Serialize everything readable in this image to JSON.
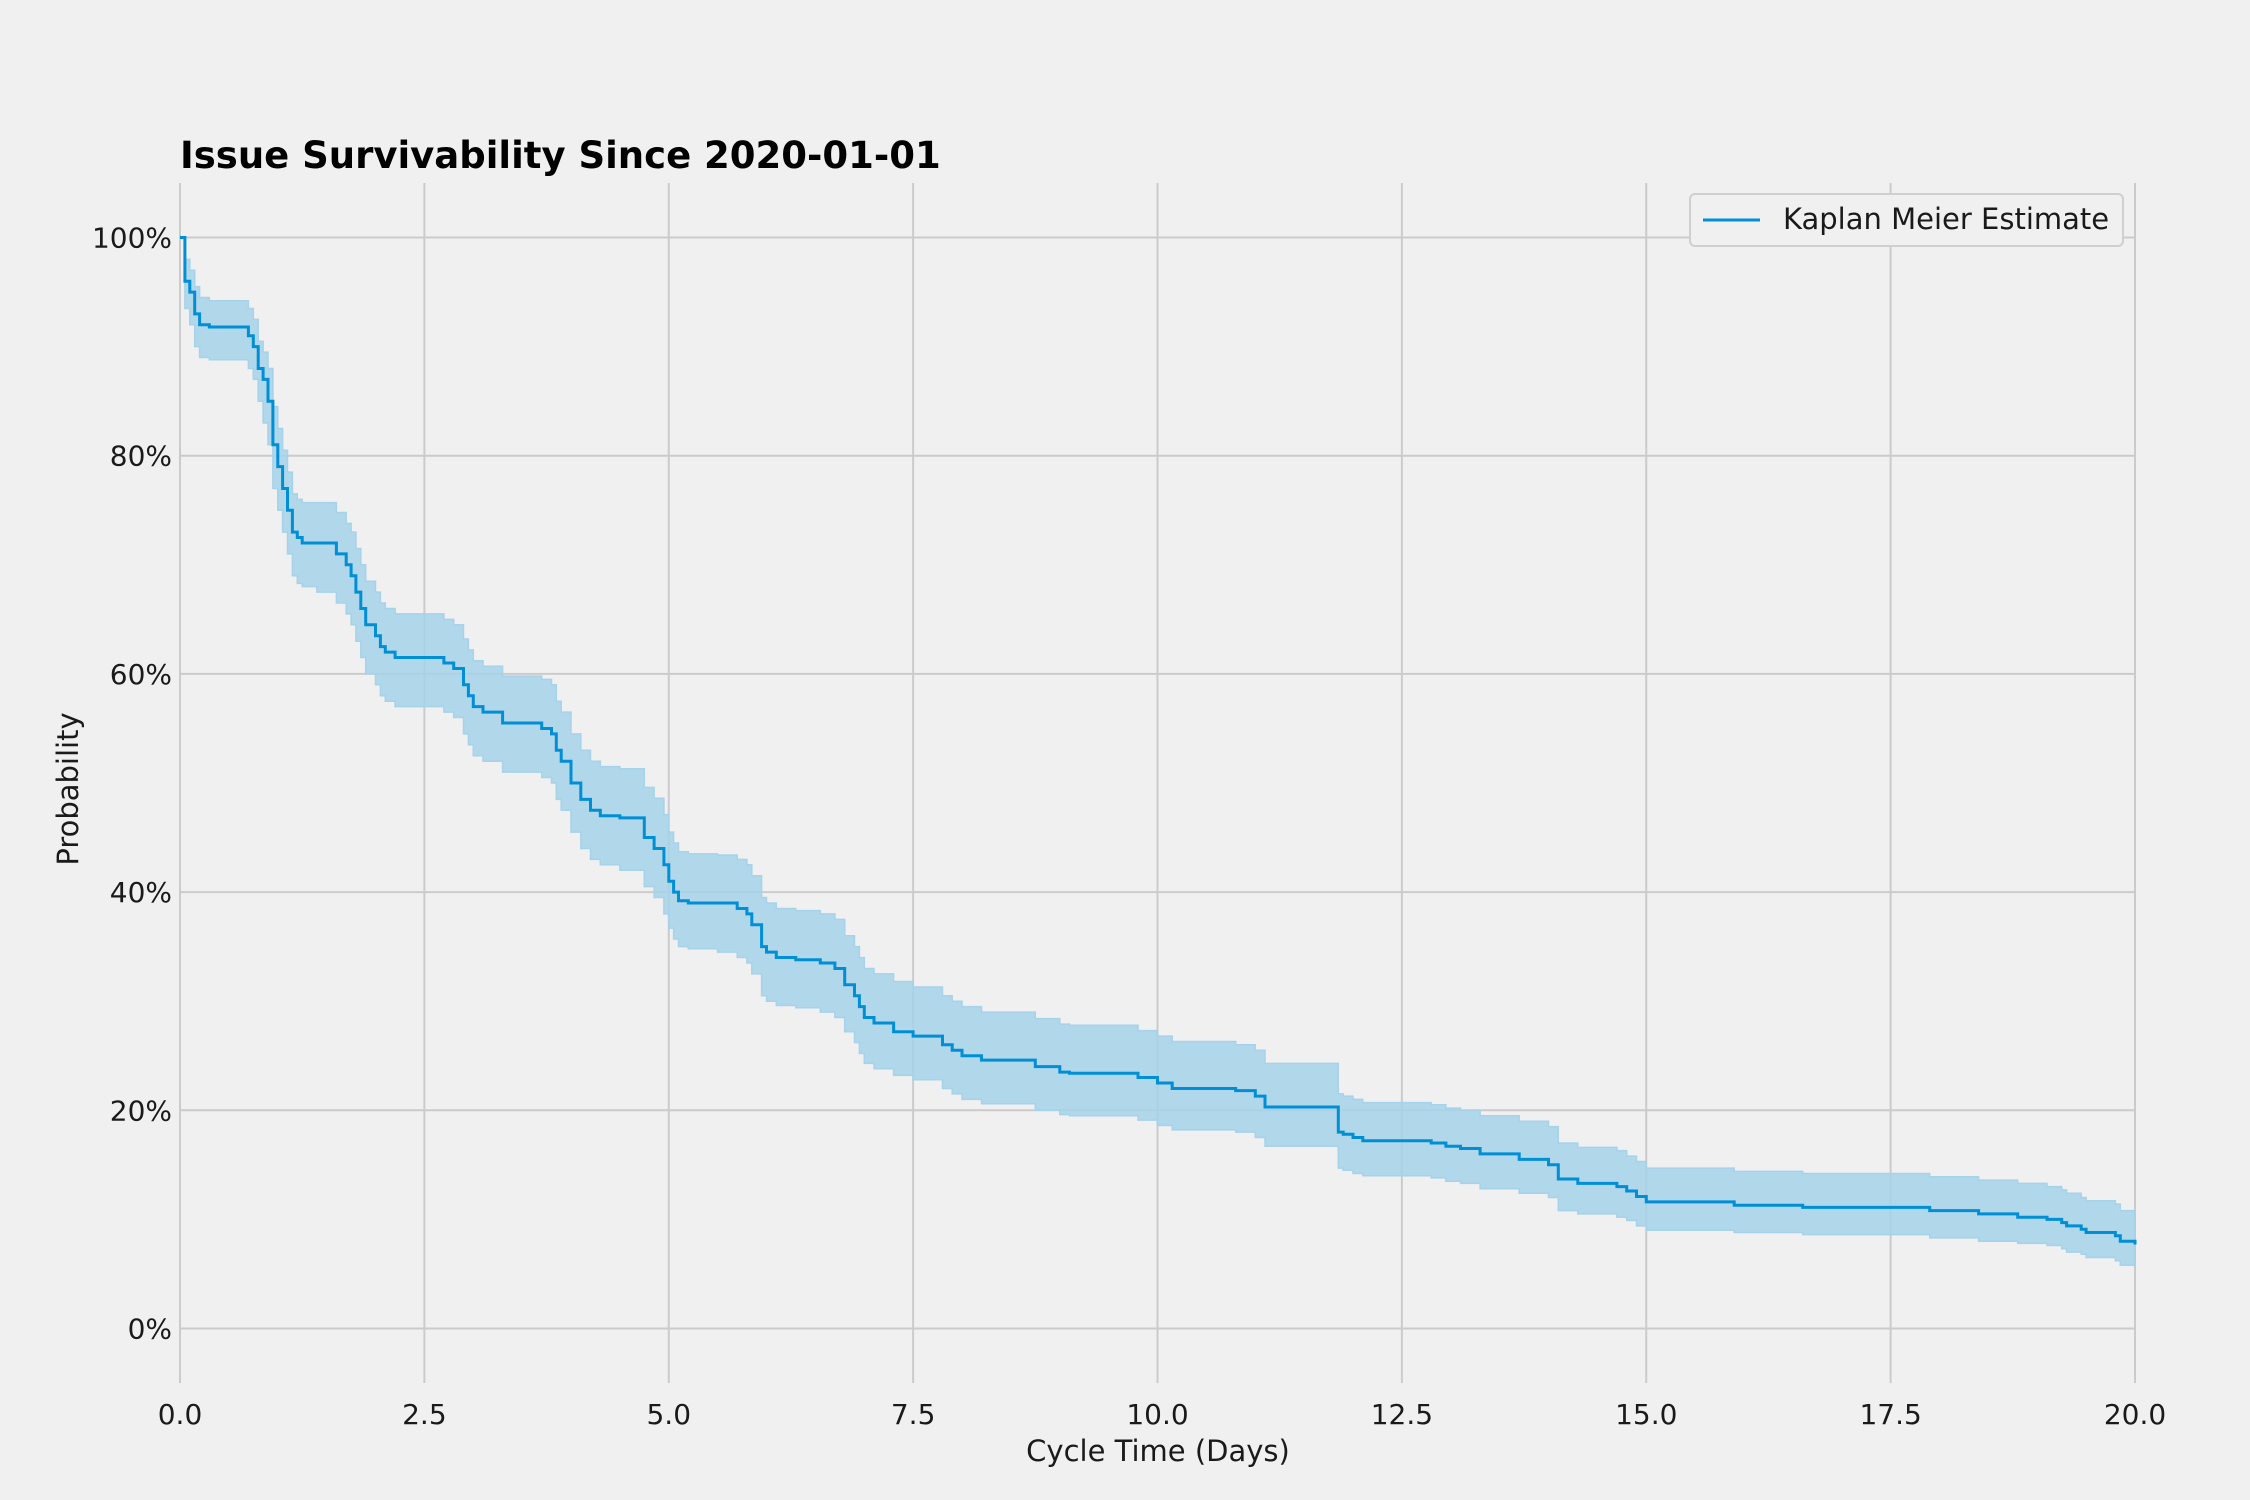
{
  "chart_data": {
    "type": "line",
    "title": "Issue Survivability Since 2020-01-01",
    "xlabel": "Cycle Time (Days)",
    "ylabel": "Probability",
    "xlim": [
      0,
      20
    ],
    "ylim": [
      -0.05,
      1.05
    ],
    "x_ticks": [
      0,
      2.5,
      5,
      7.5,
      10,
      12.5,
      15,
      17.5,
      20
    ],
    "x_tick_labels": [
      "0.0",
      "2.5",
      "5.0",
      "7.5",
      "10.0",
      "12.5",
      "15.0",
      "17.5",
      "20.0"
    ],
    "y_ticks": [
      0,
      0.2,
      0.4,
      0.6,
      0.8,
      1.0
    ],
    "y_tick_labels": [
      "0%",
      "20%",
      "40%",
      "60%",
      "80%",
      "100%"
    ],
    "grid": true,
    "legend": {
      "position": "upper-right",
      "entries": [
        "Kaplan Meier Estimate"
      ]
    },
    "colors": {
      "line": "#008fd5",
      "band": "#a6d2ea",
      "background": "#f0f0f0",
      "grid": "#cbcbcb"
    },
    "series": [
      {
        "name": "Kaplan Meier Estimate",
        "style": "step-post",
        "x": [
          0,
          0.05,
          0.1,
          0.15,
          0.2,
          0.3,
          0.7,
          0.75,
          0.8,
          0.85,
          0.9,
          0.95,
          1.0,
          1.05,
          1.1,
          1.15,
          1.2,
          1.25,
          1.4,
          1.6,
          1.7,
          1.75,
          1.8,
          1.85,
          1.9,
          2.0,
          2.05,
          2.1,
          2.2,
          2.7,
          2.8,
          2.9,
          2.95,
          3.0,
          3.1,
          3.3,
          3.7,
          3.8,
          3.85,
          3.9,
          4.0,
          4.1,
          4.2,
          4.3,
          4.5,
          4.75,
          4.85,
          4.95,
          5.0,
          5.05,
          5.1,
          5.2,
          5.5,
          5.7,
          5.8,
          5.85,
          5.95,
          6.0,
          6.1,
          6.3,
          6.55,
          6.7,
          6.8,
          6.9,
          6.95,
          7.0,
          7.1,
          7.3,
          7.5,
          7.8,
          7.9,
          8.0,
          8.2,
          8.75,
          9.0,
          9.1,
          9.8,
          10.0,
          10.15,
          10.8,
          11.0,
          11.1,
          11.8,
          11.85,
          11.9,
          12.0,
          12.1,
          12.8,
          12.95,
          13.1,
          13.3,
          13.7,
          14.0,
          14.1,
          14.3,
          14.7,
          14.8,
          14.9,
          15.0,
          15.9,
          16.6,
          17.9,
          18.4,
          18.8,
          19.1,
          19.25,
          19.3,
          19.45,
          19.5,
          19.8,
          19.85,
          20.0
        ],
        "y": [
          1.0,
          0.96,
          0.95,
          0.93,
          0.92,
          0.918,
          0.91,
          0.9,
          0.88,
          0.87,
          0.85,
          0.81,
          0.79,
          0.77,
          0.75,
          0.73,
          0.725,
          0.72,
          0.72,
          0.71,
          0.7,
          0.69,
          0.675,
          0.66,
          0.645,
          0.635,
          0.625,
          0.62,
          0.615,
          0.61,
          0.605,
          0.59,
          0.58,
          0.57,
          0.565,
          0.555,
          0.55,
          0.545,
          0.53,
          0.52,
          0.5,
          0.485,
          0.475,
          0.47,
          0.468,
          0.45,
          0.44,
          0.425,
          0.41,
          0.4,
          0.392,
          0.39,
          0.39,
          0.385,
          0.38,
          0.37,
          0.35,
          0.345,
          0.34,
          0.338,
          0.335,
          0.33,
          0.315,
          0.305,
          0.295,
          0.285,
          0.28,
          0.272,
          0.268,
          0.26,
          0.255,
          0.25,
          0.246,
          0.24,
          0.235,
          0.234,
          0.23,
          0.225,
          0.22,
          0.218,
          0.213,
          0.203,
          0.203,
          0.18,
          0.178,
          0.175,
          0.172,
          0.17,
          0.167,
          0.165,
          0.16,
          0.155,
          0.15,
          0.137,
          0.133,
          0.13,
          0.126,
          0.121,
          0.116,
          0.113,
          0.111,
          0.108,
          0.105,
          0.102,
          0.1,
          0.097,
          0.094,
          0.091,
          0.088,
          0.085,
          0.08,
          0.077
        ],
        "ci_lower": [
          1.0,
          0.935,
          0.92,
          0.9,
          0.89,
          0.888,
          0.88,
          0.87,
          0.85,
          0.83,
          0.81,
          0.77,
          0.75,
          0.73,
          0.71,
          0.69,
          0.683,
          0.68,
          0.675,
          0.665,
          0.655,
          0.645,
          0.63,
          0.615,
          0.6,
          0.59,
          0.58,
          0.575,
          0.57,
          0.565,
          0.56,
          0.545,
          0.535,
          0.525,
          0.52,
          0.51,
          0.505,
          0.5,
          0.485,
          0.475,
          0.455,
          0.44,
          0.43,
          0.425,
          0.42,
          0.405,
          0.395,
          0.38,
          0.367,
          0.357,
          0.35,
          0.348,
          0.345,
          0.34,
          0.335,
          0.325,
          0.305,
          0.3,
          0.296,
          0.294,
          0.29,
          0.285,
          0.272,
          0.262,
          0.252,
          0.243,
          0.238,
          0.232,
          0.228,
          0.22,
          0.215,
          0.21,
          0.206,
          0.2,
          0.196,
          0.195,
          0.191,
          0.186,
          0.182,
          0.18,
          0.175,
          0.167,
          0.167,
          0.147,
          0.145,
          0.142,
          0.14,
          0.138,
          0.135,
          0.133,
          0.128,
          0.124,
          0.12,
          0.108,
          0.105,
          0.102,
          0.099,
          0.094,
          0.09,
          0.088,
          0.086,
          0.083,
          0.08,
          0.078,
          0.076,
          0.073,
          0.07,
          0.068,
          0.065,
          0.062,
          0.058,
          0.055
        ],
        "ci_upper": [
          1.0,
          0.98,
          0.97,
          0.955,
          0.945,
          0.942,
          0.935,
          0.925,
          0.905,
          0.895,
          0.88,
          0.845,
          0.825,
          0.805,
          0.785,
          0.765,
          0.76,
          0.757,
          0.757,
          0.748,
          0.738,
          0.73,
          0.715,
          0.7,
          0.685,
          0.675,
          0.665,
          0.66,
          0.655,
          0.65,
          0.645,
          0.632,
          0.622,
          0.612,
          0.607,
          0.598,
          0.595,
          0.59,
          0.575,
          0.565,
          0.545,
          0.53,
          0.52,
          0.515,
          0.513,
          0.496,
          0.486,
          0.471,
          0.455,
          0.445,
          0.437,
          0.435,
          0.434,
          0.43,
          0.425,
          0.415,
          0.395,
          0.39,
          0.385,
          0.383,
          0.38,
          0.375,
          0.36,
          0.35,
          0.34,
          0.33,
          0.325,
          0.318,
          0.313,
          0.305,
          0.3,
          0.295,
          0.29,
          0.284,
          0.279,
          0.278,
          0.273,
          0.268,
          0.263,
          0.26,
          0.255,
          0.243,
          0.243,
          0.215,
          0.213,
          0.21,
          0.207,
          0.205,
          0.202,
          0.2,
          0.195,
          0.19,
          0.185,
          0.17,
          0.166,
          0.163,
          0.158,
          0.153,
          0.147,
          0.144,
          0.142,
          0.139,
          0.136,
          0.133,
          0.13,
          0.127,
          0.124,
          0.12,
          0.117,
          0.114,
          0.108,
          0.104
        ]
      }
    ]
  }
}
